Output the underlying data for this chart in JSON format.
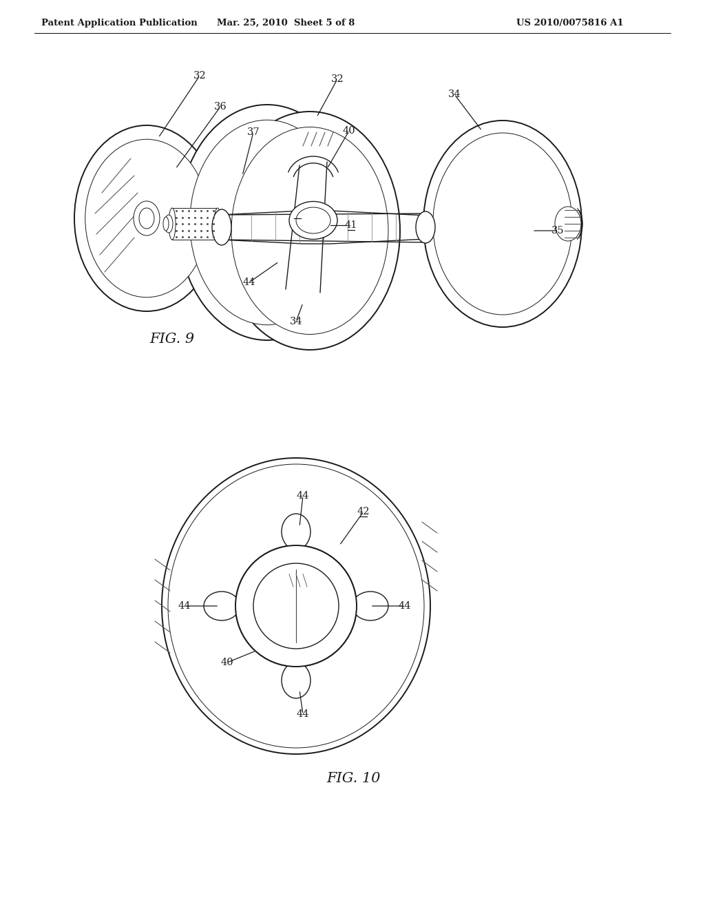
{
  "background_color": "#ffffff",
  "header_left": "Patent Application Publication",
  "header_center": "Mar. 25, 2010  Sheet 5 of 8",
  "header_right": "US 2010/0075816 A1",
  "header_fontsize": 9.5,
  "fig9_label": "FIG. 9",
  "fig10_label": "FIG. 10",
  "line_color": "#1a1a1a",
  "label_fontsize": 10.5,
  "fig_label_fontsize": 15
}
